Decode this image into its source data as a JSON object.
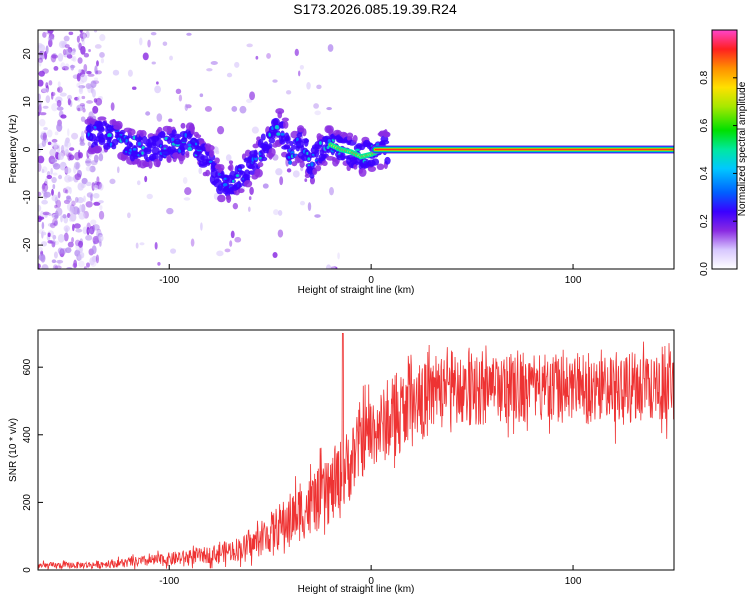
{
  "title": "S173.2026.085.19.39.R24",
  "chart_data": [
    {
      "type": "heatmap",
      "xlabel": "Height of straight line (km)",
      "ylabel": "Frequency (Hz)",
      "xlim": [
        -165,
        150
      ],
      "ylim": [
        -25,
        25
      ],
      "xticks": [
        -100,
        0,
        100
      ],
      "yticks": [
        -20,
        -10,
        0,
        10,
        20
      ],
      "colorbar": {
        "label": "Normalized spectral amplitude",
        "range": [
          0,
          1
        ],
        "ticks": [
          0.0,
          0.2,
          0.4,
          0.6,
          0.8
        ]
      },
      "ridge": {
        "x": [
          -140,
          -130,
          -120,
          -110,
          -100,
          -90,
          -80,
          -75,
          -70,
          -60,
          -50,
          -45,
          -40,
          -35,
          -30,
          -25,
          -20,
          -15,
          -10,
          -5,
          0,
          5,
          10,
          150
        ],
        "freq": [
          3,
          3,
          1,
          0,
          1,
          2,
          -3,
          -7,
          -7,
          -4,
          2,
          5,
          -1,
          2,
          -4,
          0,
          1,
          0,
          -0.5,
          -1.5,
          -1,
          0,
          0,
          0
        ]
      }
    },
    {
      "type": "line",
      "xlabel": "Height of straight line (km)",
      "ylabel": "SNR (10 * v/v)",
      "xlim": [
        -165,
        150
      ],
      "ylim": [
        0,
        710
      ],
      "xticks": [
        -100,
        0,
        100
      ],
      "yticks": [
        0,
        200,
        400,
        600
      ],
      "color": "#ee3333",
      "envelope": {
        "x": [
          -165,
          -140,
          -120,
          -100,
          -80,
          -60,
          -50,
          -40,
          -30,
          -20,
          -15,
          -10,
          -5,
          0,
          10,
          20,
          30,
          40,
          60,
          80,
          100,
          120,
          150
        ],
        "mean": [
          12,
          15,
          22,
          32,
          45,
          70,
          110,
          150,
          190,
          235,
          270,
          320,
          380,
          410,
          440,
          480,
          510,
          520,
          525,
          530,
          520,
          525,
          540
        ],
        "amp": [
          10,
          10,
          14,
          20,
          25,
          40,
          60,
          80,
          90,
          100,
          120,
          110,
          110,
          110,
          110,
          110,
          110,
          100,
          95,
          95,
          95,
          95,
          100
        ]
      }
    }
  ]
}
